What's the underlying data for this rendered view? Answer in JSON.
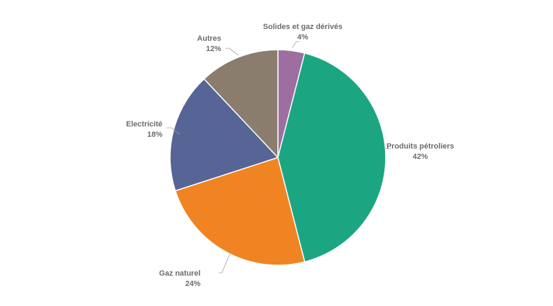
{
  "chart_data": {
    "type": "pie",
    "title": "",
    "slices": [
      {
        "label": "Solides et gaz dérivés",
        "value": 4,
        "value_label": "4%",
        "color": "#9d6fa0"
      },
      {
        "label": "Produits pétroliers",
        "value": 42,
        "value_label": "42%",
        "color": "#1ba681"
      },
      {
        "label": "Gaz naturel",
        "value": 24,
        "value_label": "24%",
        "color": "#f08423"
      },
      {
        "label": "Electricité",
        "value": 18,
        "value_label": "18%",
        "color": "#566595"
      },
      {
        "label": "Autres",
        "value": 12,
        "value_label": "12%",
        "color": "#8a7d6e"
      }
    ],
    "start": "12 o'clock",
    "direction": "clockwise",
    "legend": "none",
    "label_color": "#6b6b6b",
    "slice_border_color": "#ffffff"
  }
}
